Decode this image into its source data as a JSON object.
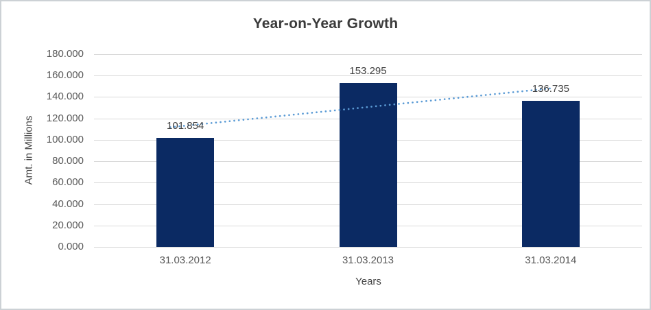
{
  "chart_data": {
    "type": "bar",
    "title": "Year-on-Year Growth",
    "xlabel": "Years",
    "ylabel": "Amt. in Millions",
    "categories": [
      "31.03.2012",
      "31.03.2013",
      "31.03.2014"
    ],
    "values": [
      101.854,
      153.295,
      136.735
    ],
    "data_labels": [
      "101.854",
      "153.295",
      "136.735"
    ],
    "ylim": [
      0,
      180
    ],
    "ytick_step": 20,
    "ytick_labels": [
      "180.000",
      "160.000",
      "140.000",
      "120.000",
      "100.000",
      "80.000",
      "60.000",
      "40.000",
      "20.000",
      "0.000"
    ],
    "grid": true,
    "legend": "none",
    "trendline": {
      "type": "linear",
      "style": "dotted",
      "color": "#5b9bd5"
    },
    "colors": {
      "bar": "#0b2a63",
      "gridline": "#d9d9d9",
      "tick_text": "#595959",
      "label_text": "#404040",
      "title_text": "#3b3b3b"
    }
  }
}
